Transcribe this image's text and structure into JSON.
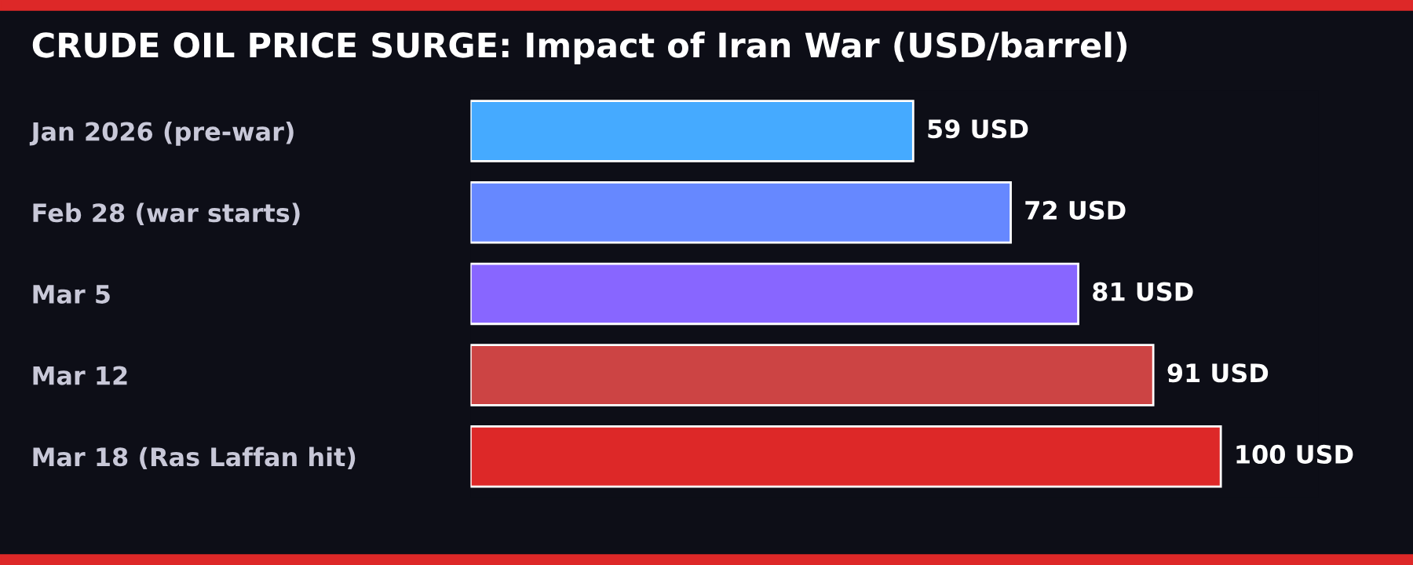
{
  "chart_data": {
    "type": "bar",
    "orientation": "horizontal",
    "title": "CRUDE OIL PRICE SURGE: Impact of Iran War (USD/barrel)",
    "categories": [
      "Jan 2026 (pre-war)",
      "Feb 28 (war starts)",
      "Mar 5",
      "Mar 12",
      "Mar 18 (Ras Laffan hit)"
    ],
    "values": [
      59,
      72,
      81,
      91,
      100
    ],
    "colors": [
      "#45aaff",
      "#6688ff",
      "#8866ff",
      "#cc4444",
      "#dd2828"
    ],
    "value_labels": [
      "59 USD",
      "72 USD",
      "81 USD",
      "91 USD",
      "100 USD"
    ],
    "grid": false,
    "legend": false
  }
}
